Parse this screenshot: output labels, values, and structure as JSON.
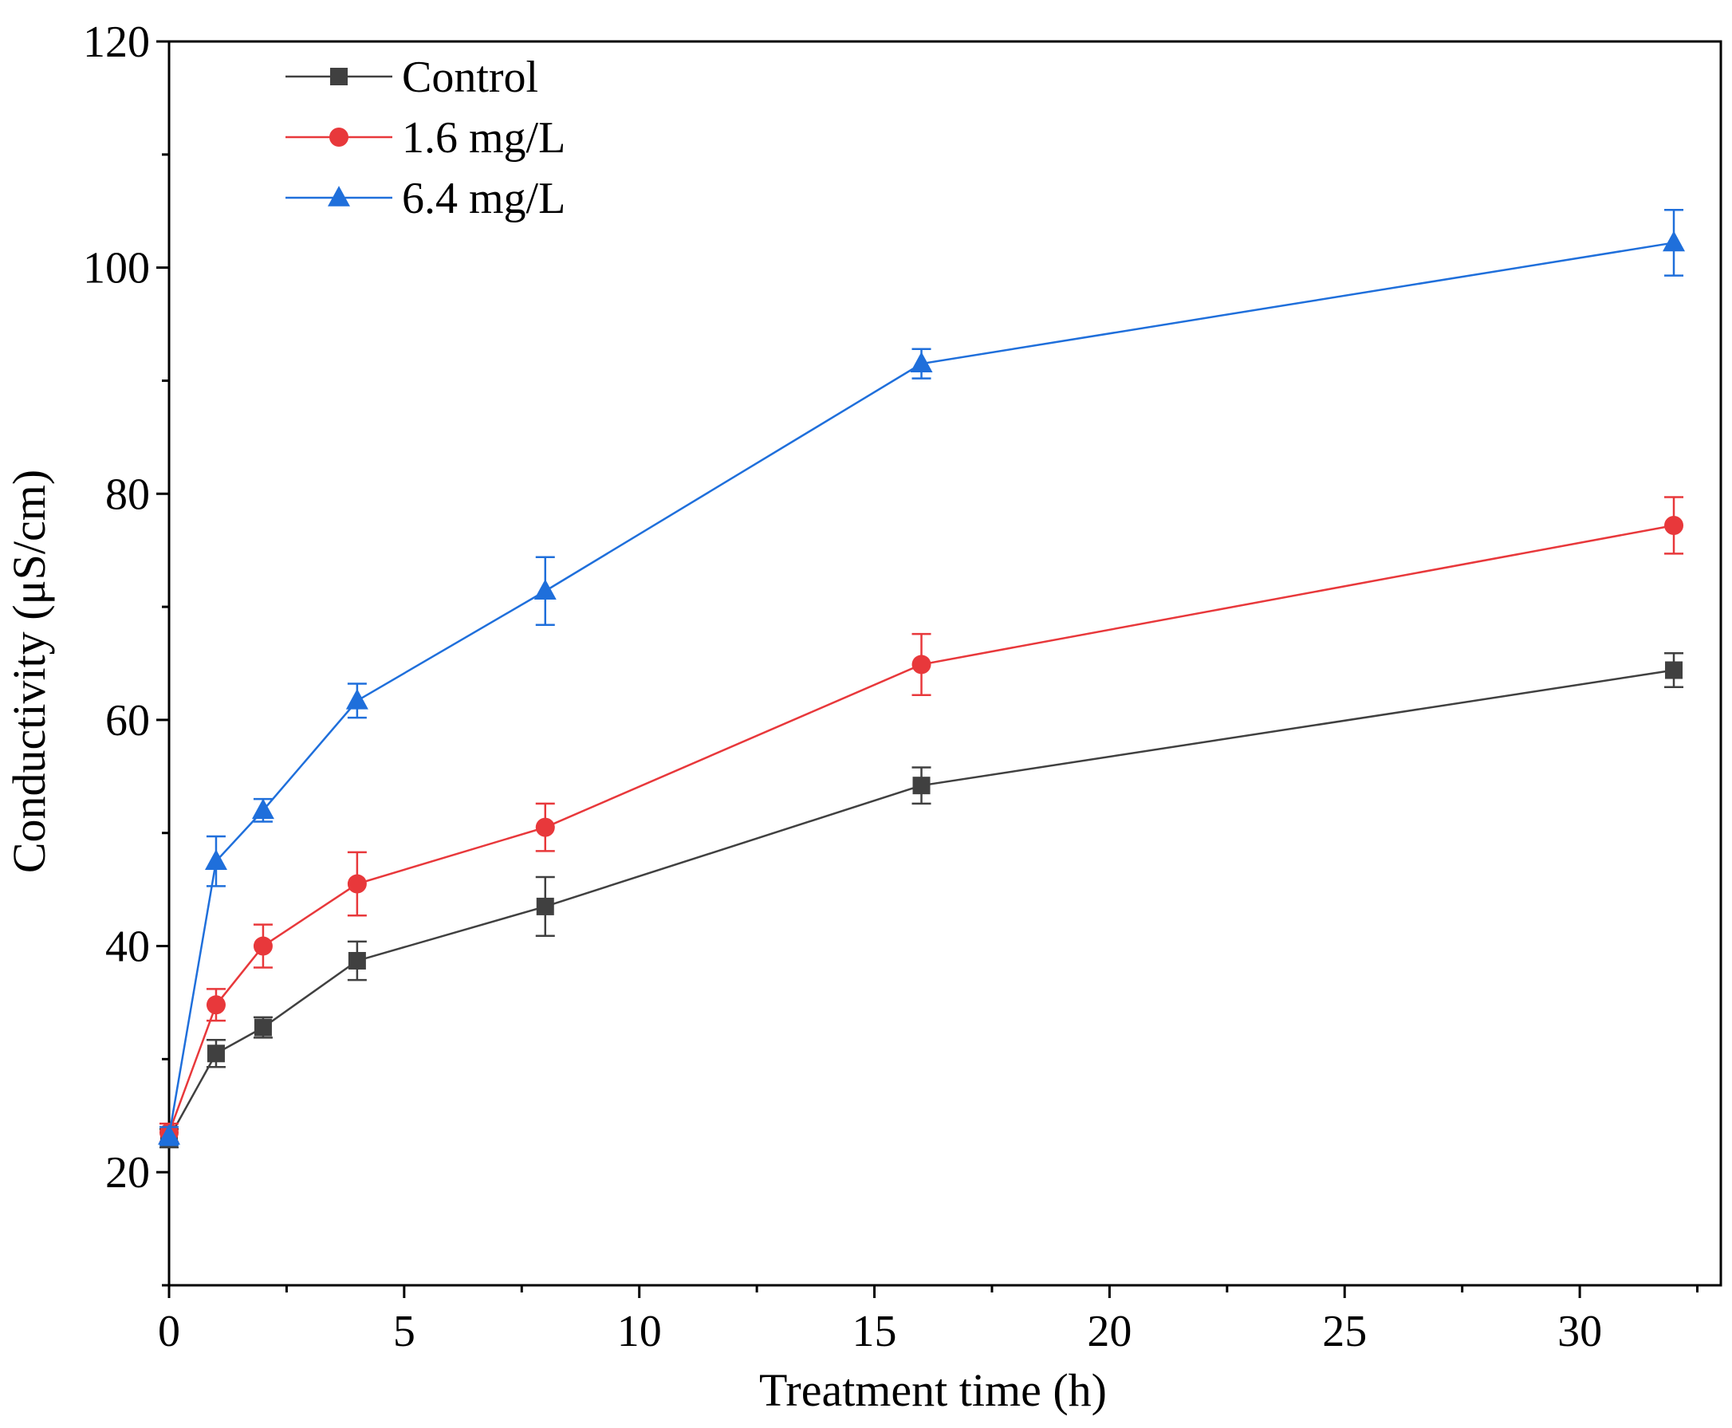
{
  "chart_data": {
    "type": "line",
    "title": "",
    "xlabel": "Treatment time (h)",
    "ylabel": "Conductivity (μS/cm)",
    "xlim": [
      0,
      33
    ],
    "ylim": [
      10,
      120
    ],
    "xticks": [
      0,
      5,
      10,
      15,
      20,
      25,
      30
    ],
    "yticks": [
      20,
      40,
      60,
      80,
      100,
      120
    ],
    "x": [
      0,
      1,
      2,
      4,
      8,
      16,
      32
    ],
    "grid": false,
    "legend_position": "top-left",
    "series": [
      {
        "name": "Control",
        "color": "#404040",
        "marker": "square",
        "values": [
          23.0,
          30.5,
          32.8,
          38.7,
          43.5,
          54.2,
          64.4
        ],
        "errors": [
          0.8,
          1.2,
          0.9,
          1.7,
          2.6,
          1.6,
          1.5
        ]
      },
      {
        "name": "1.6 mg/L",
        "color": "#e8383b",
        "marker": "circle",
        "values": [
          23.5,
          34.8,
          40.0,
          45.5,
          50.5,
          64.9,
          77.2
        ],
        "errors": [
          0.8,
          1.4,
          1.9,
          2.8,
          2.1,
          2.7,
          2.5
        ]
      },
      {
        "name": "6.4 mg/L",
        "color": "#1f6fdb",
        "marker": "triangle",
        "values": [
          23.2,
          47.5,
          52.0,
          61.7,
          71.4,
          91.5,
          102.2
        ],
        "errors": [
          0.8,
          2.2,
          1.0,
          1.5,
          3.0,
          1.3,
          2.9
        ]
      }
    ]
  }
}
